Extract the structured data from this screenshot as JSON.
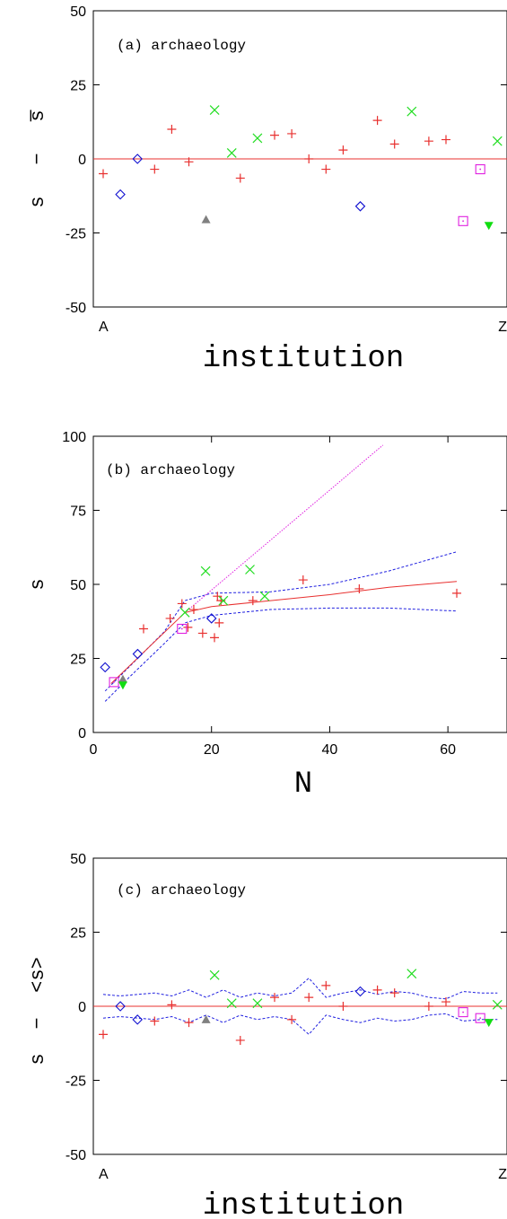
{
  "chart_data": [
    {
      "type": "scatter",
      "panel_label": "(a) archaeology",
      "xlabel": "institution",
      "ylabel_parts": [
        "s",
        "−",
        "s̅"
      ],
      "ylim": [
        -50,
        50
      ],
      "yticks": [
        -50,
        -25,
        0,
        25,
        50
      ],
      "x_tick_labels": [
        "A",
        "Z"
      ],
      "reference_line": 0,
      "series": [
        {
          "marker": "plus",
          "color": "#e8302f",
          "points": [
            [
              1,
              -5
            ],
            [
              4,
              -3.5
            ],
            [
              5,
              10
            ],
            [
              6,
              -1
            ],
            [
              9,
              -6.5
            ],
            [
              11,
              8
            ],
            [
              12,
              8.5
            ],
            [
              13,
              0
            ],
            [
              14,
              -3.5
            ],
            [
              15,
              3
            ],
            [
              17,
              13
            ],
            [
              18,
              5
            ],
            [
              20,
              6
            ],
            [
              21,
              6.5
            ]
          ]
        },
        {
          "marker": "cross",
          "color": "#22dd22",
          "points": [
            [
              7.5,
              16.5
            ],
            [
              8.5,
              2
            ],
            [
              10,
              7
            ],
            [
              19,
              16
            ],
            [
              24,
              6
            ]
          ]
        },
        {
          "marker": "diamond",
          "color": "#1010d0",
          "points": [
            [
              2,
              -12
            ],
            [
              3,
              0
            ],
            [
              16,
              -16
            ]
          ]
        },
        {
          "marker": "square-dot",
          "color": "#e020e0",
          "points": [
            [
              22,
              -21
            ],
            [
              23,
              -3.5
            ]
          ]
        },
        {
          "marker": "triangle-up",
          "color": "#808080",
          "points": [
            [
              7,
              -20.5
            ]
          ]
        },
        {
          "marker": "triangle-down",
          "color": "#11dd11",
          "points": [
            [
              23.5,
              -22.5
            ]
          ]
        }
      ]
    },
    {
      "type": "scatter",
      "panel_label": "(b) archaeology",
      "xlabel": "N",
      "ylabel_parts": [
        "s"
      ],
      "xlim": [
        0,
        70
      ],
      "ylim": [
        0,
        100
      ],
      "xticks": [
        0,
        20,
        40,
        60
      ],
      "yticks": [
        0,
        25,
        50,
        75,
        100
      ],
      "fit_line": {
        "color": "#e8302f",
        "x": [
          3,
          15.5,
          20,
          30,
          40,
          50,
          61.5
        ],
        "y": [
          16.5,
          40.5,
          42.5,
          44.5,
          46.5,
          49,
          51
        ]
      },
      "extrapolation_line": {
        "color": "#e020e0",
        "x": [
          15.5,
          49
        ],
        "y": [
          40.5,
          97
        ]
      },
      "confidence_band": {
        "color": "#2020e0",
        "upper": {
          "x": [
            2,
            6,
            12,
            15.5,
            20,
            30,
            40,
            50,
            61.5
          ],
          "y": [
            14,
            22,
            34,
            44.5,
            47,
            47.5,
            50,
            54.5,
            61
          ]
        },
        "lower": {
          "x": [
            2,
            6,
            12,
            15.5,
            20,
            30,
            40,
            50,
            61.5
          ],
          "y": [
            10.5,
            18.5,
            30,
            37,
            39.5,
            41.5,
            42,
            42,
            41
          ]
        }
      },
      "series": [
        {
          "marker": "plus",
          "color": "#e8302f",
          "points": [
            [
              8.5,
              35
            ],
            [
              13,
              38.5
            ],
            [
              15,
              43.5
            ],
            [
              16,
              35.5
            ],
            [
              17,
              41.5
            ],
            [
              18.5,
              33.5
            ],
            [
              20.5,
              32
            ],
            [
              21,
              46
            ],
            [
              21.3,
              37
            ],
            [
              21.6,
              44.5
            ],
            [
              27,
              44.5
            ],
            [
              35.5,
              51.5
            ],
            [
              45,
              48.5
            ],
            [
              61.5,
              47
            ]
          ]
        },
        {
          "marker": "cross",
          "color": "#22dd22",
          "points": [
            [
              15.5,
              40.5
            ],
            [
              19,
              54.5
            ],
            [
              22,
              44.5
            ],
            [
              26.5,
              55
            ],
            [
              29,
              46
            ]
          ]
        },
        {
          "marker": "diamond",
          "color": "#1010d0",
          "points": [
            [
              2,
              22
            ],
            [
              7.5,
              26.5
            ],
            [
              20,
              38.5
            ]
          ]
        },
        {
          "marker": "square-dot",
          "color": "#e020e0",
          "points": [
            [
              3.5,
              17
            ],
            [
              15,
              35
            ]
          ]
        },
        {
          "marker": "triangle-up",
          "color": "#808080",
          "points": [
            [
              5,
              18
            ]
          ]
        },
        {
          "marker": "triangle-down",
          "color": "#11dd11",
          "points": [
            [
              5,
              16
            ]
          ]
        }
      ]
    },
    {
      "type": "scatter",
      "panel_label": "(c) archaeology",
      "xlabel": "institution",
      "ylabel_parts": [
        "s",
        "−",
        "<s>"
      ],
      "ylim": [
        -50,
        50
      ],
      "yticks": [
        -50,
        -25,
        0,
        25,
        50
      ],
      "x_tick_labels": [
        "A",
        "Z"
      ],
      "reference_line": 0,
      "band_color": "#2020e0",
      "band_upper": {
        "x": [
          1,
          2,
          3,
          4,
          5,
          6,
          7,
          8,
          9,
          10,
          11,
          12,
          13,
          14,
          15,
          16,
          17,
          18,
          19,
          20,
          21,
          22,
          23,
          24
        ],
        "y": [
          4,
          3.5,
          4,
          4.5,
          3.5,
          5.5,
          3,
          5.5,
          3,
          4.5,
          3.5,
          4.5,
          9.5,
          3,
          4.5,
          5.5,
          4,
          5,
          4.5,
          3,
          2.5,
          5,
          4.5,
          4.5
        ]
      },
      "band_lower": {
        "x": [
          1,
          2,
          3,
          4,
          5,
          6,
          7,
          8,
          9,
          10,
          11,
          12,
          13,
          14,
          15,
          16,
          17,
          18,
          19,
          20,
          21,
          22,
          23,
          24
        ],
        "y": [
          -4,
          -3.5,
          -4,
          -4.5,
          -3.5,
          -5.5,
          -3,
          -5.5,
          -3,
          -4.5,
          -3.5,
          -4.5,
          -9.5,
          -3,
          -4.5,
          -5.5,
          -4,
          -5,
          -4.5,
          -3,
          -2.5,
          -5,
          -4.5,
          -4.5
        ]
      },
      "series": [
        {
          "marker": "plus",
          "color": "#e8302f",
          "points": [
            [
              1,
              -9.5
            ],
            [
              4,
              -5
            ],
            [
              5,
              0.5
            ],
            [
              6,
              -5.5
            ],
            [
              9,
              -11.5
            ],
            [
              11,
              3
            ],
            [
              12,
              -4.5
            ],
            [
              13,
              3
            ],
            [
              14,
              7
            ],
            [
              15,
              0
            ],
            [
              17,
              5.5
            ],
            [
              18,
              4.5
            ],
            [
              20,
              0
            ],
            [
              21,
              1.5
            ]
          ]
        },
        {
          "marker": "cross",
          "color": "#22dd22",
          "points": [
            [
              7.5,
              10.5
            ],
            [
              8.5,
              1
            ],
            [
              10,
              1
            ],
            [
              19,
              11
            ],
            [
              24,
              0.5
            ]
          ]
        },
        {
          "marker": "diamond",
          "color": "#1010d0",
          "points": [
            [
              2,
              0
            ],
            [
              3,
              -4.5
            ],
            [
              16,
              5
            ]
          ]
        },
        {
          "marker": "square-dot",
          "color": "#e020e0",
          "points": [
            [
              22,
              -2
            ],
            [
              23,
              -4
            ]
          ]
        },
        {
          "marker": "triangle-up",
          "color": "#808080",
          "points": [
            [
              7,
              -4.5
            ]
          ]
        },
        {
          "marker": "triangle-down",
          "color": "#11dd11",
          "points": [
            [
              23.5,
              -5.5
            ]
          ]
        }
      ]
    }
  ]
}
